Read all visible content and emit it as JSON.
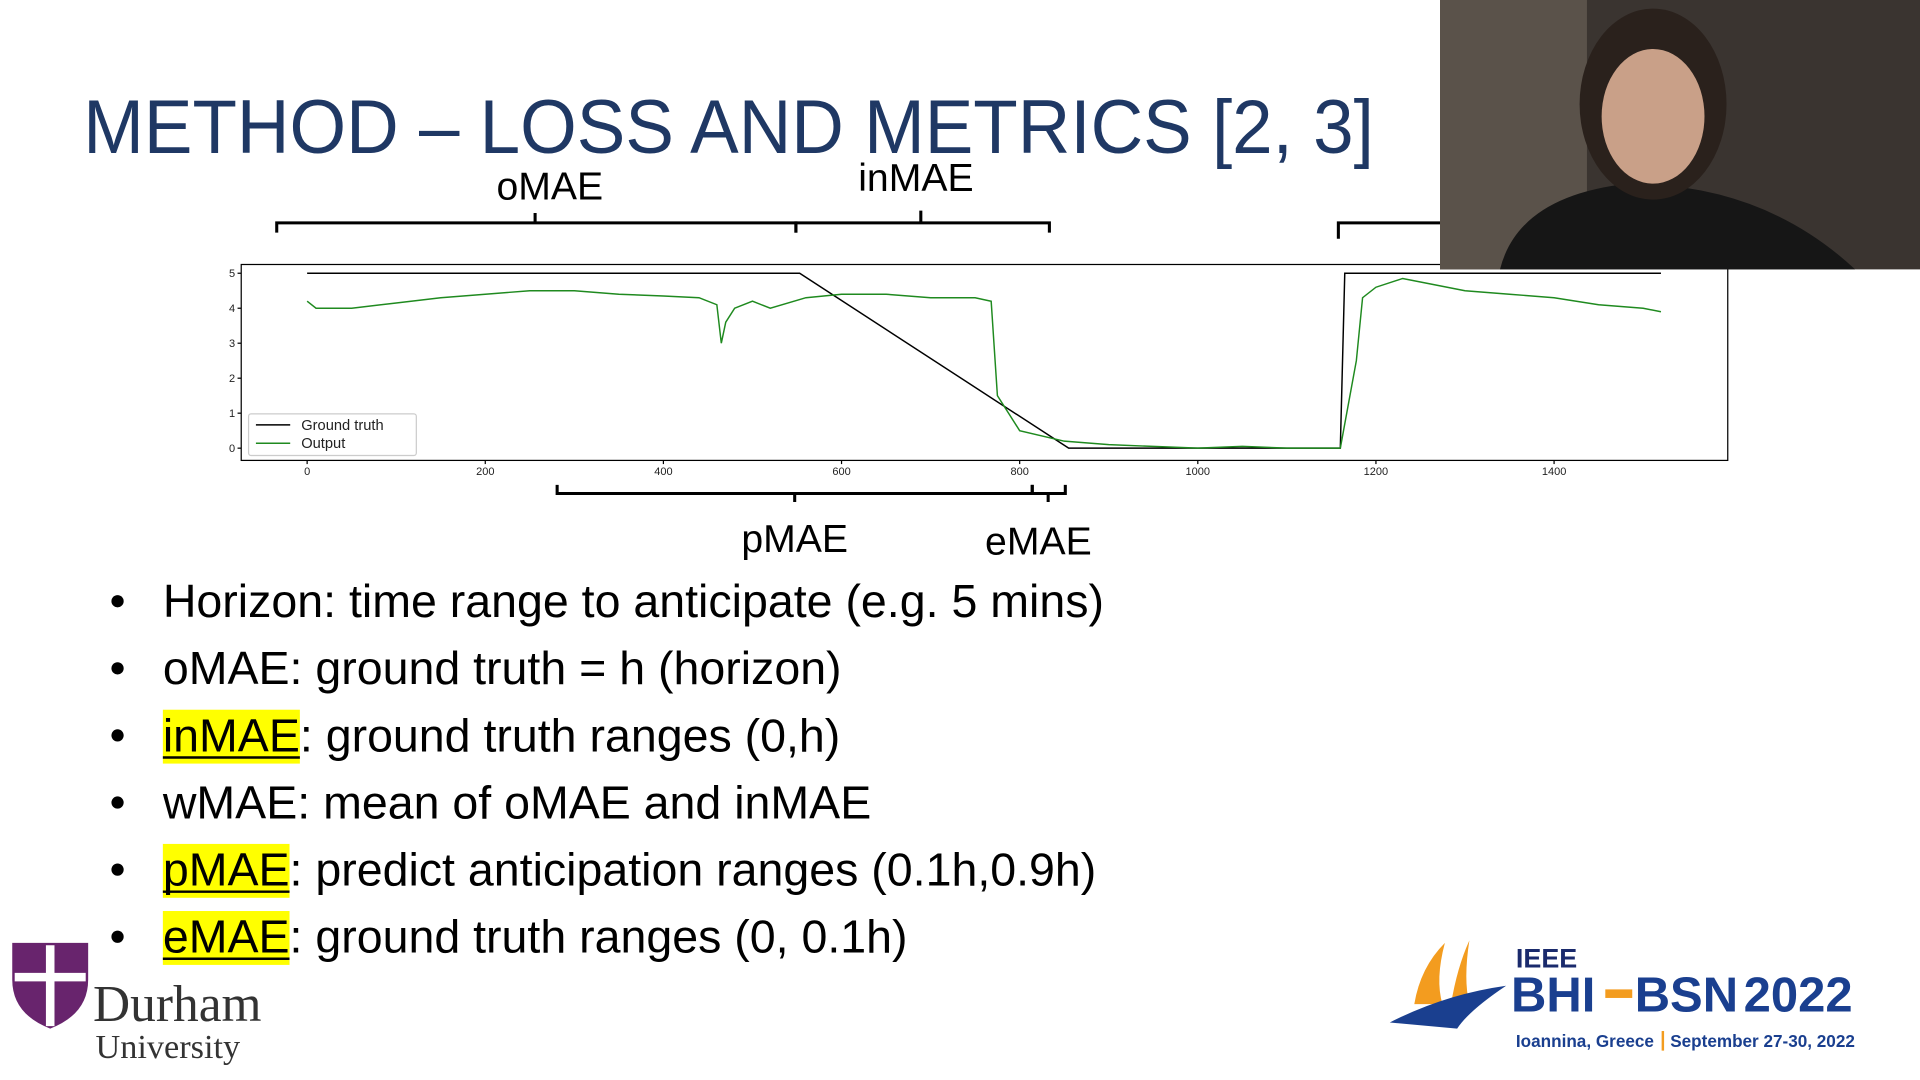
{
  "title": "METHOD – LOSS AND METRICS [2, 3]",
  "annotations": {
    "omae": "oMAE",
    "inmae": "inMAE",
    "pmae": "pMAE",
    "emae": "eMAE"
  },
  "chart_data": {
    "type": "line",
    "xlim": [
      -74,
      1595
    ],
    "ylim": [
      -0.35,
      5.25
    ],
    "xticks": [
      0,
      200,
      400,
      600,
      800,
      1000,
      1200,
      1400
    ],
    "yticks": [
      0,
      1,
      2,
      3,
      4,
      5
    ],
    "legend": "lower left",
    "series": [
      {
        "name": "Ground truth",
        "color": "#000000",
        "x": [
          0,
          553,
          855,
          1160,
          1165,
          1520
        ],
        "values": [
          5,
          5,
          0,
          0,
          5,
          5
        ]
      },
      {
        "name": "Output",
        "color": "#1f8a1f",
        "x": [
          0,
          10,
          50,
          100,
          150,
          200,
          250,
          300,
          350,
          400,
          440,
          460,
          465,
          470,
          480,
          500,
          520,
          560,
          600,
          650,
          700,
          750,
          768,
          775,
          800,
          850,
          900,
          1000,
          1050,
          1100,
          1160,
          1178,
          1185,
          1200,
          1230,
          1260,
          1300,
          1350,
          1400,
          1450,
          1500,
          1520
        ],
        "values": [
          4.2,
          4.0,
          4.0,
          4.15,
          4.3,
          4.4,
          4.5,
          4.5,
          4.4,
          4.35,
          4.3,
          4.1,
          3.0,
          3.6,
          4.0,
          4.2,
          4.0,
          4.3,
          4.4,
          4.4,
          4.3,
          4.3,
          4.2,
          1.5,
          0.5,
          0.2,
          0.1,
          0.0,
          0.05,
          0.0,
          0.0,
          2.5,
          4.3,
          4.6,
          4.85,
          4.7,
          4.5,
          4.4,
          4.3,
          4.1,
          4.0,
          3.9
        ]
      }
    ]
  },
  "bullets": [
    {
      "lead": "Horizon",
      "rest": ": time range to anticipate (e.g. 5 mins)",
      "highlight": false
    },
    {
      "lead": "oMAE",
      "rest": ": ground truth = h (horizon)",
      "highlight": false
    },
    {
      "lead": "inMAE",
      "rest": ": ground truth ranges (0,h)",
      "highlight": true
    },
    {
      "lead": "wMAE",
      "rest": ": mean of oMAE and inMAE",
      "highlight": false
    },
    {
      "lead": "pMAE",
      "rest": ": predict anticipation ranges (0.1h,0.9h)",
      "highlight": true
    },
    {
      "lead": "eMAE",
      "rest": ": ground truth ranges (0, 0.1h)",
      "highlight": true
    }
  ],
  "logo_university": {
    "name": "Durham",
    "sub": "University"
  },
  "logo_conference": {
    "org": "IEEE",
    "name1": "BHI",
    "name2": "BSN",
    "year": "2022",
    "place": "Ioannina, Greece",
    "dates": "September 27-30, 2022"
  }
}
